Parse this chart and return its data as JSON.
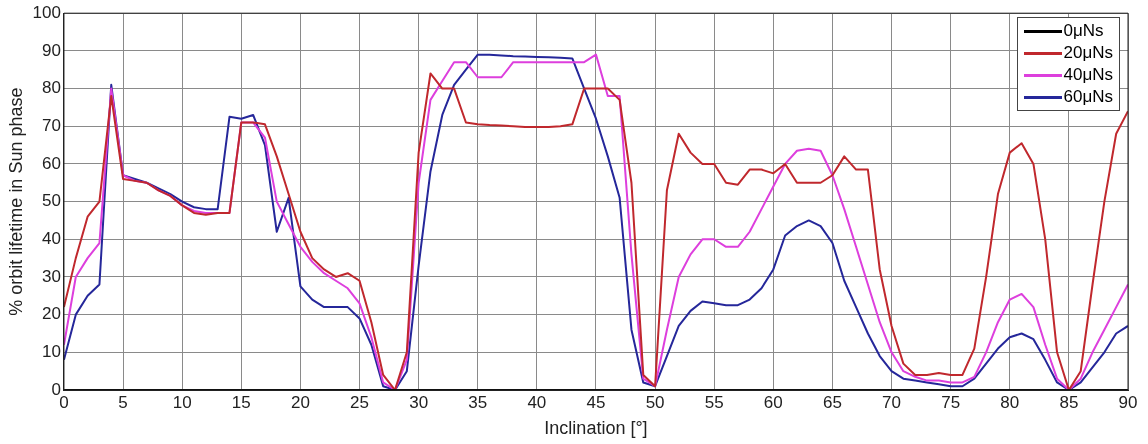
{
  "chart_data": {
    "type": "line",
    "xlabel": "Inclination [°]",
    "ylabel": "% orbit lifetime in Sun phase",
    "x": [
      0,
      1,
      2,
      3,
      4,
      5,
      6,
      7,
      8,
      9,
      10,
      11,
      12,
      13,
      14,
      15,
      16,
      17,
      18,
      19,
      20,
      21,
      22,
      23,
      24,
      25,
      26,
      27,
      28,
      29,
      30,
      31,
      32,
      33,
      34,
      35,
      36,
      37,
      38,
      39,
      40,
      41,
      42,
      43,
      44,
      45,
      46,
      47,
      48,
      49,
      50,
      51,
      52,
      53,
      54,
      55,
      56,
      57,
      58,
      59,
      60,
      61,
      62,
      63,
      64,
      65,
      66,
      67,
      68,
      69,
      70,
      71,
      72,
      73,
      74,
      75,
      76,
      77,
      78,
      79,
      80,
      81,
      82,
      83,
      84,
      85,
      86,
      87,
      88,
      89,
      90
    ],
    "series": [
      {
        "name": "0μNs",
        "color": "#000000",
        "values": [
          0,
          0,
          0,
          0,
          0,
          0,
          0,
          0,
          0,
          0,
          0,
          0,
          0,
          0,
          0,
          0,
          0,
          0,
          0,
          0,
          0,
          0,
          0,
          0,
          0,
          0,
          0,
          0,
          0,
          0,
          0,
          0,
          0,
          0,
          0,
          0,
          0,
          0,
          0,
          0,
          0,
          0,
          0,
          0,
          0,
          0,
          0,
          0,
          0,
          0,
          0,
          0,
          0,
          0,
          0,
          0,
          0,
          0,
          0,
          0,
          0,
          0,
          0,
          0,
          0,
          0,
          0,
          0,
          0,
          0,
          0,
          0,
          0,
          0,
          0,
          0,
          0,
          0,
          0,
          0,
          0,
          0,
          0,
          0,
          0,
          0,
          0,
          0,
          0,
          0,
          0
        ]
      },
      {
        "name": "20μNs",
        "color": "#c0282d",
        "values": [
          22,
          35,
          46,
          50,
          78,
          56,
          55.5,
          55,
          53,
          51.5,
          49,
          47,
          46.5,
          47,
          47,
          71,
          71,
          70.5,
          62,
          52,
          42,
          35,
          32,
          30,
          31,
          29,
          18,
          4,
          0,
          10,
          63,
          84,
          80,
          80,
          71,
          70.5,
          70.3,
          70.2,
          70,
          69.8,
          69.8,
          69.8,
          70,
          70.5,
          80,
          80,
          80,
          77,
          55,
          4,
          1,
          53,
          68,
          63,
          60,
          60,
          55,
          54.5,
          58.5,
          58.5,
          57.5,
          60,
          55,
          55,
          55,
          57,
          62,
          58.5,
          58.5,
          32,
          17,
          7,
          4,
          4,
          4.5,
          4,
          4,
          11,
          30,
          52,
          63,
          65.5,
          60,
          40,
          10,
          0,
          5,
          28,
          50,
          68,
          74
        ]
      },
      {
        "name": "40μNs",
        "color": "#dd3fdd",
        "values": [
          12,
          30,
          35,
          39,
          80,
          57,
          55.5,
          55,
          53,
          51.5,
          49,
          47.5,
          47,
          47,
          47,
          71,
          71,
          67,
          50,
          44,
          38,
          34,
          31,
          29,
          27,
          23,
          14,
          2,
          0,
          8,
          55,
          77,
          82,
          87,
          87,
          83,
          83,
          83,
          87,
          87,
          87,
          87,
          87,
          87,
          87,
          89,
          78,
          78,
          36,
          3,
          1,
          16,
          30,
          36,
          40,
          40,
          38,
          38,
          42,
          48,
          54,
          60,
          63.5,
          64,
          63.5,
          57,
          48,
          38,
          28,
          18,
          10,
          5,
          3.5,
          2.5,
          2.5,
          2,
          2,
          3.5,
          10,
          18,
          24,
          25.5,
          22,
          12,
          3,
          0,
          3,
          10,
          16,
          22,
          28
        ]
      },
      {
        "name": "60μNs",
        "color": "#25279a",
        "values": [
          8,
          20,
          25,
          28,
          81,
          57,
          56,
          55,
          53.5,
          52,
          50,
          48.5,
          48,
          48,
          72.5,
          72,
          73,
          65,
          42,
          51,
          27.5,
          24,
          22,
          22,
          22,
          19,
          12,
          1,
          0,
          5,
          33,
          58,
          73,
          81,
          85,
          89,
          89,
          88.8,
          88.6,
          88.5,
          88.4,
          88.3,
          88.2,
          88,
          80,
          72,
          62,
          51,
          16,
          2,
          1,
          9,
          17,
          21,
          23.5,
          23,
          22.5,
          22.5,
          24,
          27,
          32,
          41,
          43.5,
          45,
          43.5,
          39,
          29,
          22,
          15,
          9,
          5,
          3,
          2.5,
          2,
          1.5,
          1,
          1,
          3,
          7,
          11,
          14,
          15,
          13.5,
          8,
          2,
          0,
          2,
          6,
          10,
          15,
          17
        ]
      }
    ],
    "xlim": [
      0,
      90
    ],
    "xticks": [
      0,
      5,
      10,
      15,
      20,
      25,
      30,
      35,
      40,
      45,
      50,
      55,
      60,
      65,
      70,
      75,
      80,
      85,
      90
    ],
    "ylim": [
      0,
      100
    ],
    "yticks": [
      0,
      10,
      20,
      30,
      40,
      50,
      60,
      70,
      80,
      90,
      100
    ],
    "grid": true,
    "legend": "top right",
    "marker": "none",
    "line_style": "solid"
  }
}
